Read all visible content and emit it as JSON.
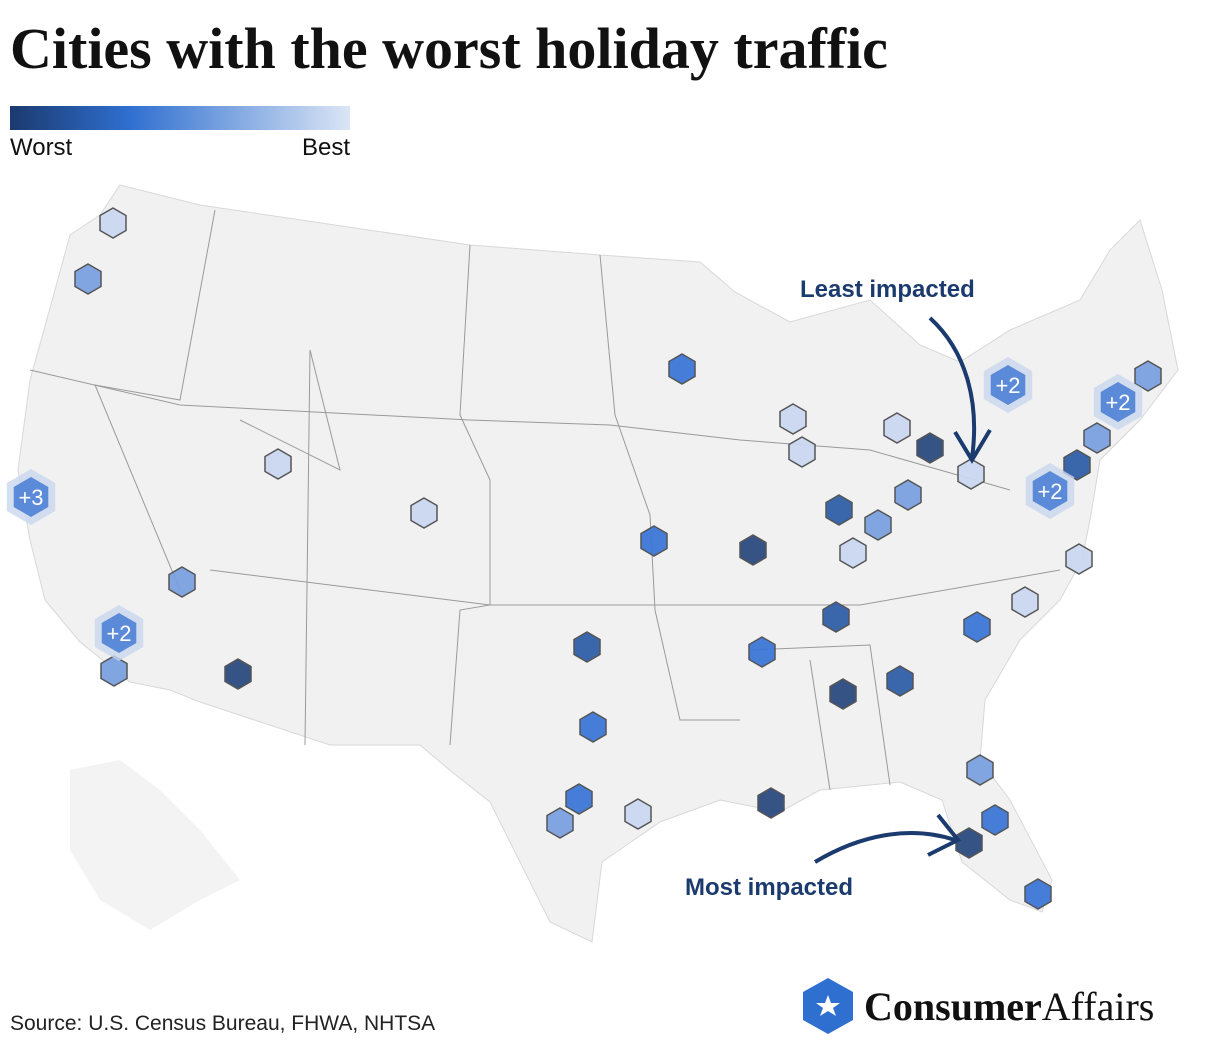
{
  "header": {
    "title": "Cities with the worst holiday traffic"
  },
  "legend": {
    "low": "Worst",
    "high": "Best"
  },
  "annotations": {
    "least": "Least impacted",
    "most": "Most impacted"
  },
  "clusters": [
    {
      "label": "+3"
    },
    {
      "label": "+2"
    },
    {
      "label": "+2"
    },
    {
      "label": "+2"
    },
    {
      "label": "+2"
    }
  ],
  "footer": {
    "source": "Source: U.S. Census Bureau, FHWA, NHTSA"
  },
  "logo": {
    "bold": "Consumer",
    "regular": "Affairs"
  }
}
